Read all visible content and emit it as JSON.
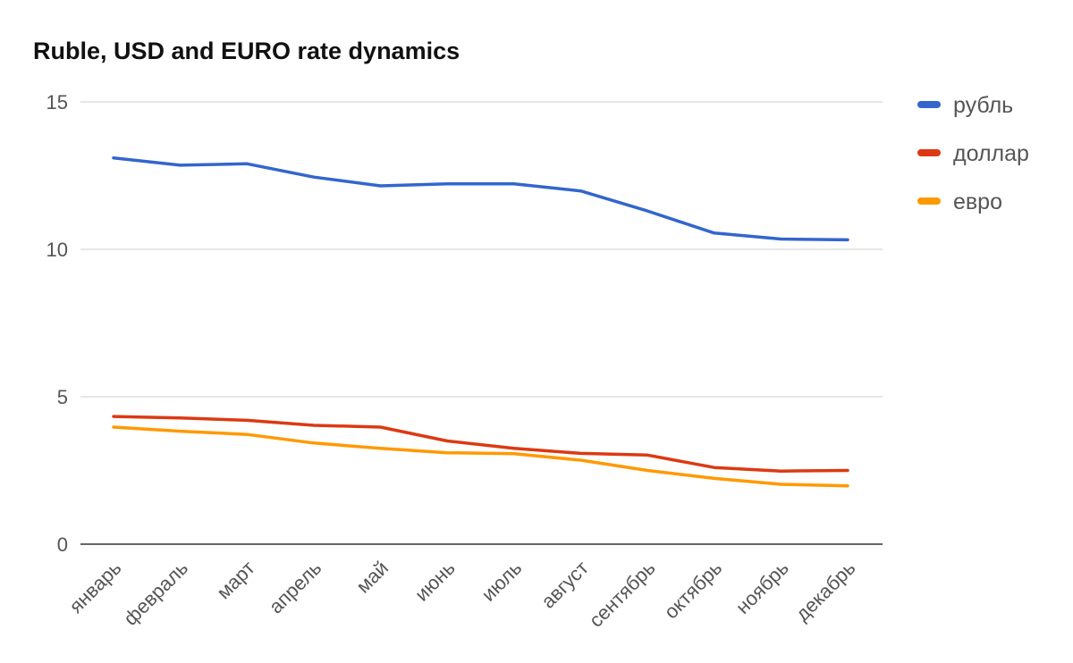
{
  "chart_data": {
    "type": "line",
    "title": "Ruble, USD and EURO rate dynamics",
    "xlabel": "",
    "ylabel": "",
    "ylim": [
      0,
      15
    ],
    "yticks": [
      0,
      5,
      10,
      15
    ],
    "grid": true,
    "legend_position": "right",
    "categories": [
      "январь",
      "февраль",
      "март",
      "апрель",
      "май",
      "июнь",
      "июль",
      "август",
      "сентябрь",
      "октябрь",
      "ноябрь",
      "декабрь"
    ],
    "series": [
      {
        "name": "рубль",
        "color": "#3366cc",
        "values": [
          13.1,
          12.85,
          12.9,
          12.45,
          12.15,
          12.22,
          12.22,
          11.98,
          11.3,
          10.55,
          10.35,
          10.32
        ]
      },
      {
        "name": "доллар",
        "color": "#dc3912",
        "values": [
          4.33,
          4.28,
          4.2,
          4.03,
          3.97,
          3.5,
          3.25,
          3.08,
          3.02,
          2.6,
          2.48,
          2.5
        ]
      },
      {
        "name": "евро",
        "color": "#ff9900",
        "values": [
          3.97,
          3.83,
          3.72,
          3.43,
          3.25,
          3.1,
          3.07,
          2.85,
          2.5,
          2.23,
          2.03,
          1.98
        ]
      }
    ]
  }
}
